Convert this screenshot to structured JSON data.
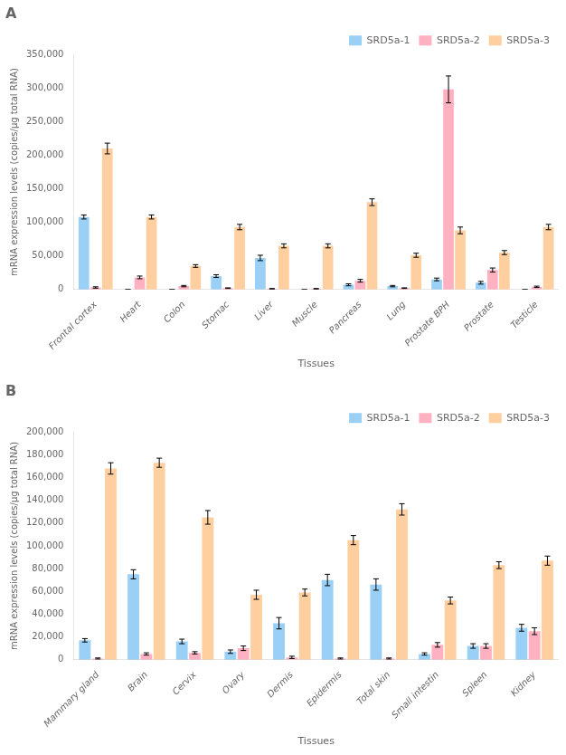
{
  "chart_data": [
    {
      "type": "bar",
      "title": "A",
      "xlabel": "Tissues",
      "ylabel": "mRNA expression levels (copies/μg total RNA)",
      "categories": [
        "Frontal cortex",
        "Heart",
        "Colon",
        "Stomac",
        "Liver",
        "Muscle",
        "Pancreas",
        "Lung",
        "Prostate BPH",
        "Prostate",
        "Testicle"
      ],
      "series": [
        {
          "name": "SRD5a-1",
          "values": [
            108000,
            0,
            0,
            20000,
            47000,
            0,
            7000,
            5000,
            15000,
            10000,
            0
          ],
          "errors": [
            3000,
            0,
            0,
            2000,
            4000,
            0,
            1500,
            1000,
            2000,
            2000,
            0
          ]
        },
        {
          "name": "SRD5a-2",
          "values": [
            3000,
            18000,
            5000,
            2000,
            1000,
            1000,
            13000,
            2000,
            298000,
            29000,
            4000
          ],
          "errors": [
            1000,
            2000,
            1000,
            500,
            500,
            500,
            2000,
            500,
            20000,
            3000,
            1000
          ]
        },
        {
          "name": "SRD5a-3",
          "values": [
            210000,
            108000,
            35000,
            93000,
            65000,
            65000,
            130000,
            51000,
            88000,
            55000,
            93000
          ],
          "errors": [
            8000,
            3000,
            2000,
            4000,
            3000,
            3000,
            5000,
            3000,
            5000,
            3000,
            4000
          ]
        }
      ],
      "ylim": [
        0,
        350000
      ],
      "yticks": [
        0,
        {
          "value": 50000,
          "label": "50,000"
        },
        {
          "value": 100000,
          "label": "100,000"
        },
        {
          "value": 150000,
          "label": "150,000"
        },
        {
          "value": 200000,
          "label": "200,000"
        },
        {
          "value": 250000,
          "label": "250,000"
        },
        {
          "value": 300000,
          "label": "300,000"
        },
        {
          "value": 350000,
          "label": "350,000"
        }
      ],
      "grid": false,
      "legend": "upper right"
    },
    {
      "type": "bar",
      "title": "B",
      "xlabel": "Tissues",
      "ylabel": "mRNA expression levels (copies/μg total RNA)",
      "categories": [
        "Mammary gland",
        "Brain",
        "Cervix",
        "Ovary",
        "Dermis",
        "Epidermis",
        "Total skin",
        "Small intestin",
        "Spleen",
        "Kidney"
      ],
      "series": [
        {
          "name": "SRD5a-1",
          "values": [
            17000,
            75000,
            16000,
            7000,
            32000,
            70000,
            66000,
            5000,
            12000,
            28000
          ],
          "errors": [
            1500,
            4000,
            2000,
            1500,
            5000,
            5000,
            5000,
            1000,
            2000,
            3000
          ]
        },
        {
          "name": "SRD5a-2",
          "values": [
            1000,
            5000,
            6000,
            10000,
            2000,
            1000,
            1000,
            13000,
            12000,
            25000
          ],
          "errors": [
            500,
            1000,
            1000,
            2000,
            1000,
            500,
            500,
            2000,
            2000,
            3000
          ]
        },
        {
          "name": "SRD5a-3",
          "values": [
            168000,
            173000,
            125000,
            57000,
            59000,
            105000,
            132000,
            52000,
            83000,
            87000
          ],
          "errors": [
            5000,
            4000,
            6000,
            4000,
            3000,
            4000,
            5000,
            3000,
            3000,
            4000
          ]
        }
      ],
      "ylim": [
        0,
        200000
      ],
      "yticks": [
        0,
        {
          "value": 20000,
          "label": "20,000"
        },
        {
          "value": 40000,
          "label": "40,000"
        },
        {
          "value": 60000,
          "label": "60,000"
        },
        {
          "value": 80000,
          "label": "80,000"
        },
        {
          "value": 100000,
          "label": "100,000"
        },
        {
          "value": 120000,
          "label": "120,000"
        },
        {
          "value": 140000,
          "label": "140,000"
        },
        {
          "value": 160000,
          "label": "160,000"
        },
        {
          "value": 180000,
          "label": "180,000"
        },
        {
          "value": 200000,
          "label": "200,000"
        }
      ],
      "grid": false,
      "legend": "upper right"
    }
  ]
}
